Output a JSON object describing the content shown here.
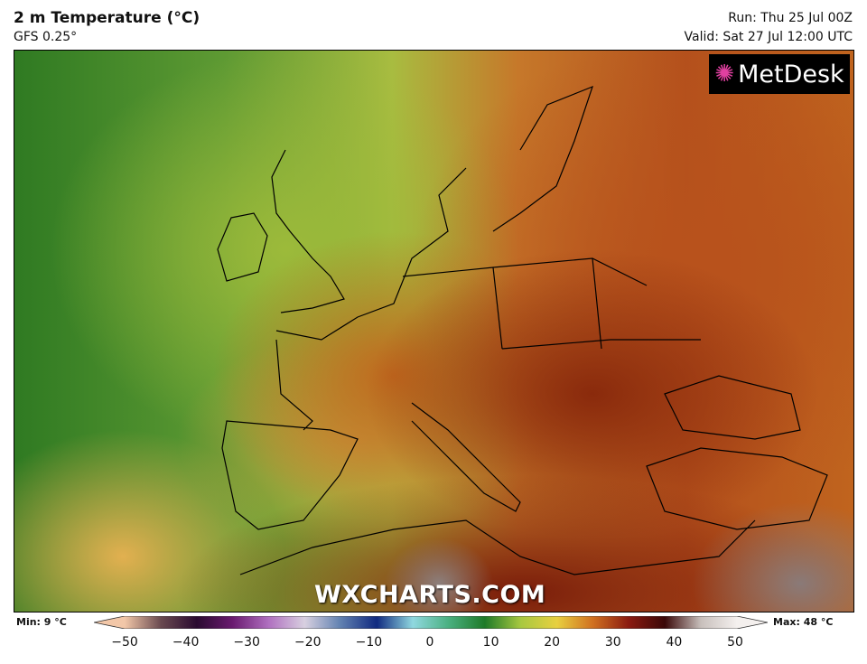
{
  "header": {
    "title": "2 m Temperature (°C)",
    "model": "GFS 0.25°",
    "run": "Run: Thu 25 Jul 00Z",
    "valid": "Valid: Sat 27 Jul 12:00 UTC"
  },
  "logo": {
    "text": "MetDesk",
    "icon": "starburst-icon"
  },
  "watermark": "WXCHARTS.COM",
  "legend": {
    "min_label": "Min: 9 °C",
    "max_label": "Max: 48 °C",
    "ticks": [
      "−50",
      "−40",
      "−30",
      "−20",
      "−10",
      "0",
      "10",
      "20",
      "30",
      "40",
      "50"
    ],
    "range": [
      -50,
      50
    ],
    "stops": [
      "#f2c7a8",
      "#6a4a50",
      "#2a0a30",
      "#6a1a70",
      "#b070c0",
      "#d8d0e0",
      "#6080b0",
      "#102a80",
      "#90d8e0",
      "#4ab080",
      "#1e7a28",
      "#a8c840",
      "#e8d040",
      "#d07020",
      "#8a1a10",
      "#3a0808",
      "#c8c0bc",
      "#f4f0ee"
    ]
  }
}
